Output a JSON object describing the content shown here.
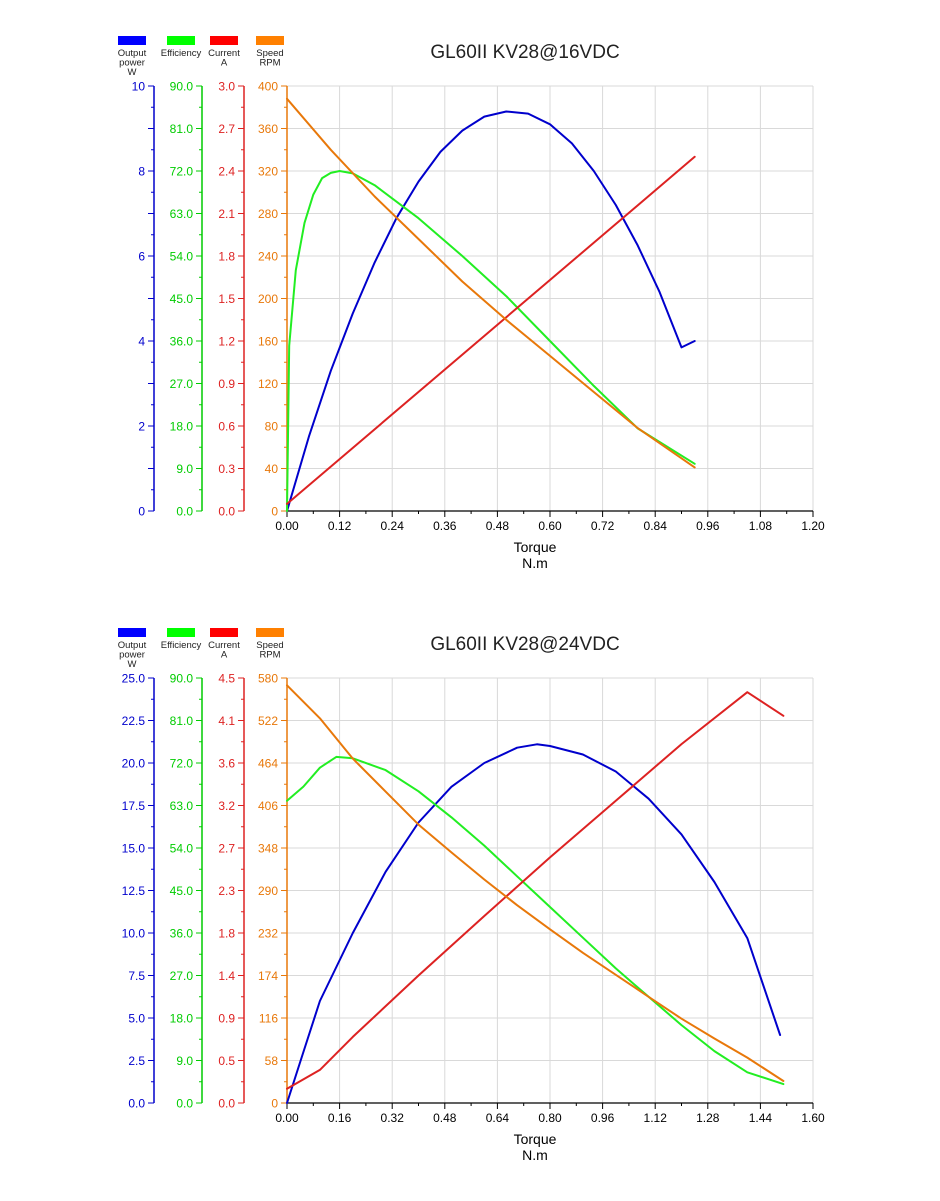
{
  "chart_data": [
    {
      "type": "line",
      "title": "GL60II KV28@16VDC",
      "xlabel": [
        "Torque",
        "N.m"
      ],
      "xlim": [
        0,
        1.2
      ],
      "xticks": [
        "0.00",
        "0.12",
        "0.24",
        "0.36",
        "0.48",
        "0.60",
        "0.72",
        "0.84",
        "0.96",
        "1.08",
        "1.20"
      ],
      "grid": true,
      "legend": [
        {
          "key": "power",
          "lines": [
            "Output",
            "power",
            "W"
          ],
          "color": "#0000ff"
        },
        {
          "key": "efficiency",
          "lines": [
            "Efficiency"
          ],
          "color": "#00ff00"
        },
        {
          "key": "current",
          "lines": [
            "Current",
            "A"
          ],
          "color": "#ff0000"
        },
        {
          "key": "speed",
          "lines": [
            "Speed",
            "RPM"
          ],
          "color": "#ff8000"
        }
      ],
      "axes": [
        {
          "key": "power",
          "color": "#0000cc",
          "min": 0,
          "max": 10,
          "ticks": [
            "0",
            "",
            "2",
            "",
            "4",
            "",
            "6",
            "",
            "8",
            "",
            "10"
          ]
        },
        {
          "key": "efficiency",
          "color": "#00cc00",
          "min": 0,
          "max": 90,
          "ticks": [
            "0.0",
            "9.0",
            "18.0",
            "27.0",
            "36.0",
            "45.0",
            "54.0",
            "63.0",
            "72.0",
            "81.0",
            "90.0"
          ]
        },
        {
          "key": "current",
          "color": "#dd2222",
          "min": 0,
          "max": 3,
          "ticks": [
            "0.0",
            "0.3",
            "0.6",
            "0.9",
            "1.2",
            "1.5",
            "1.8",
            "2.1",
            "2.4",
            "2.7",
            "3.0"
          ]
        },
        {
          "key": "speed",
          "color": "#e8780a",
          "min": 0,
          "max": 400,
          "ticks": [
            "0",
            "40",
            "80",
            "120",
            "160",
            "200",
            "240",
            "280",
            "320",
            "360",
            "400"
          ]
        }
      ],
      "series": [
        {
          "axis": "power",
          "color": "#0000cc",
          "x": [
            0,
            0.05,
            0.1,
            0.15,
            0.2,
            0.25,
            0.3,
            0.35,
            0.4,
            0.45,
            0.5,
            0.55,
            0.6,
            0.65,
            0.7,
            0.75,
            0.8,
            0.85,
            0.9,
            0.93
          ],
          "y": [
            0,
            1.75,
            3.3,
            4.65,
            5.85,
            6.9,
            7.75,
            8.45,
            8.95,
            9.28,
            9.4,
            9.35,
            9.1,
            8.65,
            8.0,
            7.2,
            6.25,
            5.15,
            3.85,
            4.0
          ]
        },
        {
          "axis": "efficiency",
          "color": "#22ee22",
          "x": [
            0,
            0.005,
            0.02,
            0.04,
            0.06,
            0.08,
            0.1,
            0.12,
            0.15,
            0.2,
            0.3,
            0.4,
            0.5,
            0.6,
            0.7,
            0.8,
            0.93
          ],
          "y": [
            0,
            35,
            51,
            61,
            67,
            70.5,
            71.6,
            72,
            71.5,
            69,
            62,
            54,
            45.5,
            36,
            26.5,
            17.5,
            10
          ]
        },
        {
          "axis": "current",
          "color": "#dd2222",
          "x": [
            0,
            0.93
          ],
          "y": [
            0.05,
            2.5
          ]
        },
        {
          "axis": "speed",
          "color": "#e8780a",
          "x": [
            0,
            0.1,
            0.2,
            0.3,
            0.4,
            0.5,
            0.6,
            0.7,
            0.8,
            0.93
          ],
          "y": [
            388,
            340,
            296,
            256,
            216,
            180,
            146,
            112,
            78,
            41
          ]
        }
      ]
    },
    {
      "type": "line",
      "title": "GL60II KV28@24VDC",
      "xlabel": [
        "Torque",
        "N.m"
      ],
      "xlim": [
        0,
        1.6
      ],
      "xticks": [
        "0.00",
        "0.16",
        "0.32",
        "0.48",
        "0.64",
        "0.80",
        "0.96",
        "1.12",
        "1.28",
        "1.44",
        "1.60"
      ],
      "grid": true,
      "legend": [
        {
          "key": "power",
          "lines": [
            "Output",
            "power",
            "W"
          ],
          "color": "#0000ff"
        },
        {
          "key": "efficiency",
          "lines": [
            "Efficiency"
          ],
          "color": "#00ff00"
        },
        {
          "key": "current",
          "lines": [
            "Current",
            "A"
          ],
          "color": "#ff0000"
        },
        {
          "key": "speed",
          "lines": [
            "Speed",
            "RPM"
          ],
          "color": "#ff8000"
        }
      ],
      "axes": [
        {
          "key": "power",
          "color": "#0000cc",
          "min": 0,
          "max": 25,
          "ticks": [
            "0.0",
            "2.5",
            "5.0",
            "7.5",
            "10.0",
            "12.5",
            "15.0",
            "17.5",
            "20.0",
            "22.5",
            "25.0"
          ]
        },
        {
          "key": "efficiency",
          "color": "#00cc00",
          "min": 0,
          "max": 90,
          "ticks": [
            "0.0",
            "9.0",
            "18.0",
            "27.0",
            "36.0",
            "45.0",
            "54.0",
            "63.0",
            "72.0",
            "81.0",
            "90.0"
          ]
        },
        {
          "key": "current",
          "color": "#dd2222",
          "min": 0,
          "max": 4.5,
          "ticks": [
            "0.0",
            "0.5",
            "0.9",
            "1.4",
            "1.8",
            "2.3",
            "2.7",
            "3.2",
            "3.6",
            "4.1",
            "4.5"
          ]
        },
        {
          "key": "speed",
          "color": "#e8780a",
          "min": 0,
          "max": 580,
          "ticks": [
            "0",
            "58",
            "116",
            "174",
            "232",
            "290",
            "348",
            "406",
            "464",
            "522",
            "580"
          ]
        }
      ],
      "series": [
        {
          "axis": "power",
          "color": "#0000cc",
          "x": [
            0,
            0.05,
            0.1,
            0.2,
            0.3,
            0.4,
            0.5,
            0.6,
            0.7,
            0.76,
            0.8,
            0.9,
            1.0,
            1.1,
            1.2,
            1.3,
            1.4,
            1.5
          ],
          "y": [
            0,
            3.0,
            6.0,
            10.0,
            13.6,
            16.5,
            18.6,
            20.0,
            20.9,
            21.1,
            21.0,
            20.5,
            19.5,
            17.9,
            15.8,
            13.0,
            9.7,
            4.0
          ]
        },
        {
          "axis": "efficiency",
          "color": "#22ee22",
          "x": [
            0,
            0.05,
            0.1,
            0.15,
            0.2,
            0.3,
            0.4,
            0.5,
            0.6,
            0.7,
            0.8,
            0.9,
            1.0,
            1.1,
            1.2,
            1.3,
            1.4,
            1.51
          ],
          "y": [
            64,
            67,
            71,
            73.3,
            73,
            70.5,
            66,
            60.5,
            54.5,
            48,
            41.5,
            35,
            28.5,
            22.5,
            16.5,
            11,
            6.5,
            4
          ]
        },
        {
          "axis": "current",
          "color": "#dd2222",
          "x": [
            0,
            0.1,
            0.2,
            0.4,
            0.6,
            0.8,
            1.0,
            1.2,
            1.4,
            1.51
          ],
          "y": [
            0.15,
            0.35,
            0.7,
            1.35,
            1.98,
            2.6,
            3.2,
            3.8,
            4.35,
            4.1
          ]
        },
        {
          "axis": "speed",
          "color": "#e8780a",
          "x": [
            0,
            0.1,
            0.2,
            0.3,
            0.4,
            0.5,
            0.6,
            0.7,
            0.8,
            0.9,
            1.0,
            1.1,
            1.2,
            1.3,
            1.4,
            1.51
          ],
          "y": [
            570,
            525,
            470,
            425,
            380,
            342,
            305,
            270,
            237,
            205,
            175,
            145,
            115,
            88,
            62,
            30
          ]
        }
      ]
    }
  ]
}
